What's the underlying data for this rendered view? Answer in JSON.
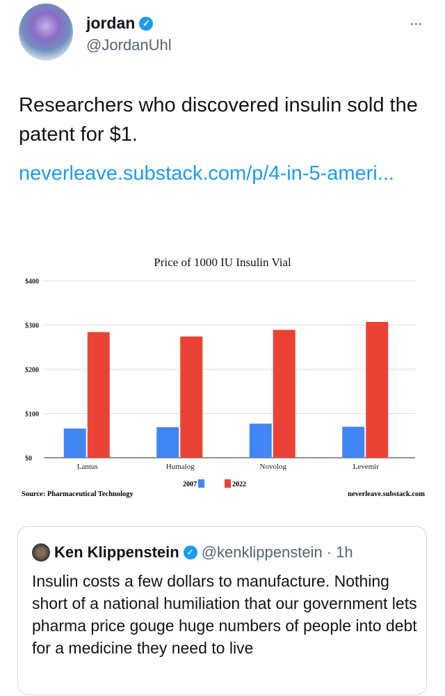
{
  "author": {
    "name": "jordan",
    "handle": "@JordanUhl"
  },
  "more_label": "•••",
  "tweet": {
    "text": "Researchers who discovered insulin sold the patent for $1.",
    "link": "neverleave.substack.com/p/4-in-5-ameri..."
  },
  "chart_data": {
    "type": "bar",
    "title": "Price of 1000 IU Insulin Vial",
    "categories": [
      "Lantus",
      "Humalog",
      "Novolog",
      "Levemir"
    ],
    "series": [
      {
        "name": "2007",
        "color": "#4285f4",
        "values": [
          66,
          69,
          77,
          70
        ]
      },
      {
        "name": "2022",
        "color": "#ea4335",
        "values": [
          284,
          274,
          289,
          307
        ]
      }
    ],
    "ylim": [
      0,
      400
    ],
    "yticks": [
      "$0",
      "$100",
      "$200",
      "$300",
      "$400"
    ],
    "xlabel": "",
    "ylabel": "",
    "grid": true,
    "legend": "bottom",
    "source": "Source: Pharmaceutical Technology",
    "credit": "neverleave.substack.com"
  },
  "quote": {
    "name": "Ken Klippenstein",
    "handle": "@kenklippenstein",
    "time": "· 1h",
    "text": "Insulin costs a few dollars to manufacture. Nothing short of a national humiliation that our government lets pharma price gouge huge numbers of people into debt for a medicine they need to live"
  }
}
